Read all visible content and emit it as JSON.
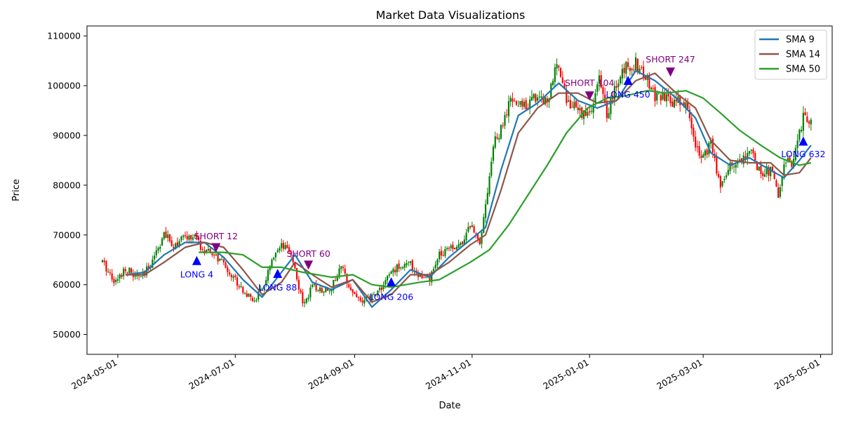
{
  "chart_data": {
    "type": "candlestick",
    "title": "Market Data Visualizations",
    "xlabel": "Date",
    "ylabel": "Price",
    "ylim": [
      46000,
      112000
    ],
    "xlim": [
      "2024-04-15",
      "2025-05-07"
    ],
    "y_ticks": [
      50000,
      60000,
      70000,
      80000,
      90000,
      100000,
      110000
    ],
    "y_tick_labels": [
      "50000",
      "60000",
      "70000",
      "80000",
      "90000",
      "100000",
      "110000"
    ],
    "x_ticks": [
      "2024-05-01",
      "2024-07-01",
      "2024-09-01",
      "2024-11-01",
      "2025-01-01",
      "2025-03-01",
      "2025-05-01"
    ],
    "x_tick_labels": [
      "2024-05-01",
      "2024-07-01",
      "2024-09-01",
      "2024-11-01",
      "2025-01-01",
      "2025-03-01",
      "2025-05-01"
    ],
    "grid": false,
    "legend_position": "top-right",
    "up_color": "#008000",
    "down_color": "#ff0000",
    "price_path": [
      [
        "2024-04-23",
        64500
      ],
      [
        "2024-04-30",
        60500
      ],
      [
        "2024-05-05",
        63500
      ],
      [
        "2024-05-10",
        61500
      ],
      [
        "2024-05-15",
        62000
      ],
      [
        "2024-05-20",
        66000
      ],
      [
        "2024-05-25",
        70000
      ],
      [
        "2024-05-30",
        68000
      ],
      [
        "2024-06-05",
        69500
      ],
      [
        "2024-06-10",
        69500
      ],
      [
        "2024-06-15",
        66500
      ],
      [
        "2024-06-20",
        66000
      ],
      [
        "2024-06-25",
        64000
      ],
      [
        "2024-07-01",
        61000
      ],
      [
        "2024-07-05",
        59000
      ],
      [
        "2024-07-10",
        56500
      ],
      [
        "2024-07-15",
        59000
      ],
      [
        "2024-07-20",
        64500
      ],
      [
        "2024-07-25",
        67500
      ],
      [
        "2024-07-30",
        66500
      ],
      [
        "2024-08-05",
        56000
      ],
      [
        "2024-08-10",
        59500
      ],
      [
        "2024-08-15",
        59000
      ],
      [
        "2024-08-20",
        59500
      ],
      [
        "2024-08-25",
        63500
      ],
      [
        "2024-08-31",
        58500
      ],
      [
        "2024-09-05",
        56500
      ],
      [
        "2024-09-10",
        57500
      ],
      [
        "2024-09-15",
        59500
      ],
      [
        "2024-09-20",
        62500
      ],
      [
        "2024-09-25",
        64000
      ],
      [
        "2024-09-30",
        64000
      ],
      [
        "2024-10-05",
        61500
      ],
      [
        "2024-10-10",
        61000
      ],
      [
        "2024-10-15",
        66000
      ],
      [
        "2024-10-20",
        68000
      ],
      [
        "2024-10-25",
        67500
      ],
      [
        "2024-10-31",
        72000
      ],
      [
        "2024-11-05",
        69000
      ],
      [
        "2024-11-08",
        76000
      ],
      [
        "2024-11-12",
        88000
      ],
      [
        "2024-11-16",
        91000
      ],
      [
        "2024-11-21",
        97000
      ],
      [
        "2024-11-25",
        96000
      ],
      [
        "2024-11-30",
        96500
      ],
      [
        "2024-12-05",
        98000
      ],
      [
        "2024-12-10",
        97000
      ],
      [
        "2024-12-16",
        105000
      ],
      [
        "2024-12-20",
        97000
      ],
      [
        "2024-12-26",
        95000
      ],
      [
        "2025-01-01",
        94000
      ],
      [
        "2025-01-06",
        101000
      ],
      [
        "2025-01-10",
        94500
      ],
      [
        "2025-01-15",
        100000
      ],
      [
        "2025-01-20",
        104000
      ],
      [
        "2025-01-25",
        104500
      ],
      [
        "2025-01-31",
        101000
      ],
      [
        "2025-02-04",
        98000
      ],
      [
        "2025-02-10",
        97000
      ],
      [
        "2025-02-15",
        97000
      ],
      [
        "2025-02-20",
        96500
      ],
      [
        "2025-02-25",
        88000
      ],
      [
        "2025-03-01",
        86000
      ],
      [
        "2025-03-05",
        88000
      ],
      [
        "2025-03-10",
        80000
      ],
      [
        "2025-03-15",
        84000
      ],
      [
        "2025-03-20",
        85000
      ],
      [
        "2025-03-25",
        87000
      ],
      [
        "2025-03-31",
        82500
      ],
      [
        "2025-04-05",
        83000
      ],
      [
        "2025-04-09",
        78000
      ],
      [
        "2025-04-12",
        84000
      ],
      [
        "2025-04-17",
        85000
      ],
      [
        "2025-04-22",
        93500
      ],
      [
        "2025-04-26",
        93500
      ]
    ],
    "series": [
      {
        "name": "SMA 9",
        "color": "#1f77b4",
        "points": [
          [
            "2024-05-05",
            62000
          ],
          [
            "2024-05-15",
            62500
          ],
          [
            "2024-05-25",
            66000
          ],
          [
            "2024-06-05",
            68500
          ],
          [
            "2024-06-15",
            68500
          ],
          [
            "2024-06-25",
            65500
          ],
          [
            "2024-07-05",
            61000
          ],
          [
            "2024-07-15",
            57500
          ],
          [
            "2024-07-25",
            62500
          ],
          [
            "2024-08-01",
            66000
          ],
          [
            "2024-08-10",
            60500
          ],
          [
            "2024-08-20",
            59000
          ],
          [
            "2024-08-31",
            61000
          ],
          [
            "2024-09-10",
            55500
          ],
          [
            "2024-09-20",
            59000
          ],
          [
            "2024-09-30",
            63000
          ],
          [
            "2024-10-10",
            61500
          ],
          [
            "2024-10-20",
            65500
          ],
          [
            "2024-10-31",
            69000
          ],
          [
            "2024-11-08",
            71500
          ],
          [
            "2024-11-16",
            83000
          ],
          [
            "2024-11-25",
            94000
          ],
          [
            "2024-12-05",
            96500
          ],
          [
            "2024-12-16",
            100500
          ],
          [
            "2024-12-26",
            97000
          ],
          [
            "2025-01-05",
            95500
          ],
          [
            "2025-01-15",
            97000
          ],
          [
            "2025-01-25",
            103000
          ],
          [
            "2025-02-04",
            101000
          ],
          [
            "2025-02-15",
            97500
          ],
          [
            "2025-02-25",
            93500
          ],
          [
            "2025-03-05",
            86500
          ],
          [
            "2025-03-15",
            84000
          ],
          [
            "2025-03-25",
            85500
          ],
          [
            "2025-04-05",
            83000
          ],
          [
            "2025-04-12",
            81500
          ],
          [
            "2025-04-20",
            85000
          ],
          [
            "2025-04-26",
            88000
          ]
        ]
      },
      {
        "name": "SMA 14",
        "color": "#8c564b",
        "points": [
          [
            "2024-05-05",
            62000
          ],
          [
            "2024-05-15",
            62000
          ],
          [
            "2024-05-25",
            64500
          ],
          [
            "2024-06-05",
            67500
          ],
          [
            "2024-06-15",
            68500
          ],
          [
            "2024-06-25",
            67500
          ],
          [
            "2024-07-05",
            63000
          ],
          [
            "2024-07-15",
            58000
          ],
          [
            "2024-07-25",
            60500
          ],
          [
            "2024-08-01",
            64500
          ],
          [
            "2024-08-10",
            62000
          ],
          [
            "2024-08-20",
            59500
          ],
          [
            "2024-08-31",
            61000
          ],
          [
            "2024-09-10",
            56500
          ],
          [
            "2024-09-20",
            58000
          ],
          [
            "2024-09-30",
            62000
          ],
          [
            "2024-10-10",
            62000
          ],
          [
            "2024-10-20",
            64500
          ],
          [
            "2024-10-31",
            68000
          ],
          [
            "2024-11-08",
            70000
          ],
          [
            "2024-11-16",
            79000
          ],
          [
            "2024-11-25",
            90500
          ],
          [
            "2024-12-05",
            95500
          ],
          [
            "2024-12-16",
            98500
          ],
          [
            "2024-12-26",
            98500
          ],
          [
            "2025-01-05",
            96500
          ],
          [
            "2025-01-15",
            97000
          ],
          [
            "2025-01-25",
            101000
          ],
          [
            "2025-02-04",
            102500
          ],
          [
            "2025-02-15",
            98500
          ],
          [
            "2025-02-25",
            95500
          ],
          [
            "2025-03-05",
            89000
          ],
          [
            "2025-03-15",
            85000
          ],
          [
            "2025-03-25",
            84500
          ],
          [
            "2025-04-05",
            84500
          ],
          [
            "2025-04-12",
            82000
          ],
          [
            "2025-04-20",
            82500
          ],
          [
            "2025-04-26",
            85500
          ]
        ]
      },
      {
        "name": "SMA 50",
        "color": "#2ca02c",
        "points": [
          [
            "2024-06-12",
            66500
          ],
          [
            "2024-06-25",
            66500
          ],
          [
            "2024-07-05",
            66000
          ],
          [
            "2024-07-15",
            63500
          ],
          [
            "2024-07-25",
            63500
          ],
          [
            "2024-08-05",
            62500
          ],
          [
            "2024-08-20",
            61500
          ],
          [
            "2024-08-31",
            62000
          ],
          [
            "2024-09-10",
            60000
          ],
          [
            "2024-09-20",
            59500
          ],
          [
            "2024-10-05",
            60500
          ],
          [
            "2024-10-15",
            61000
          ],
          [
            "2024-10-31",
            64500
          ],
          [
            "2024-11-10",
            67000
          ],
          [
            "2024-11-20",
            72000
          ],
          [
            "2024-11-30",
            78000
          ],
          [
            "2024-12-10",
            84000
          ],
          [
            "2024-12-20",
            90500
          ],
          [
            "2024-12-31",
            95500
          ],
          [
            "2025-01-10",
            97500
          ],
          [
            "2025-01-20",
            98000
          ],
          [
            "2025-01-31",
            99000
          ],
          [
            "2025-02-10",
            98500
          ],
          [
            "2025-02-20",
            99000
          ],
          [
            "2025-03-01",
            97500
          ],
          [
            "2025-03-10",
            94500
          ],
          [
            "2025-03-20",
            91000
          ],
          [
            "2025-03-31",
            88000
          ],
          [
            "2025-04-10",
            85500
          ],
          [
            "2025-04-20",
            84000
          ],
          [
            "2025-04-26",
            84500
          ]
        ]
      }
    ],
    "annotations": [
      {
        "label": "LONG 4",
        "date": "2024-06-11",
        "price": 64800,
        "kind": "long",
        "label_price": 62000,
        "color": "#0000ff"
      },
      {
        "label": "SHORT 12",
        "date": "2024-06-21",
        "price": 67500,
        "kind": "short",
        "label_price": 69700,
        "color": "#800080"
      },
      {
        "label": "LONG 88",
        "date": "2024-07-23",
        "price": 62200,
        "kind": "long",
        "label_price": 59400,
        "color": "#0000ff"
      },
      {
        "label": "SHORT 60",
        "date": "2024-08-08",
        "price": 64000,
        "kind": "short",
        "label_price": 66200,
        "color": "#800080"
      },
      {
        "label": "LONG 206",
        "date": "2024-09-20",
        "price": 60500,
        "kind": "long",
        "label_price": 57500,
        "color": "#0000ff"
      },
      {
        "label": "SHORT 104",
        "date": "2025-01-01",
        "price": 98000,
        "kind": "short",
        "label_price": 100500,
        "color": "#800080"
      },
      {
        "label": "LONG 450",
        "date": "2025-01-21",
        "price": 101000,
        "kind": "long",
        "label_price": 98200,
        "color": "#0000ff"
      },
      {
        "label": "SHORT 247",
        "date": "2025-02-12",
        "price": 102800,
        "kind": "short",
        "label_price": 105200,
        "color": "#800080"
      },
      {
        "label": "LONG 632",
        "date": "2025-04-22",
        "price": 88800,
        "kind": "long",
        "label_price": 86200,
        "color": "#0000ff"
      }
    ]
  }
}
